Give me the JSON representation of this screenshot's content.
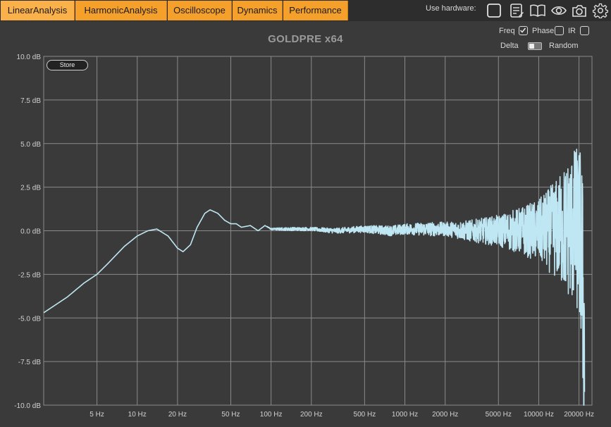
{
  "tabs": [
    {
      "label": "LinearAnalysis",
      "active": true
    },
    {
      "label": "HarmonicAnalysis",
      "active": false
    },
    {
      "label": "Oscilloscope",
      "active": false
    },
    {
      "label": "Dynamics",
      "active": false
    },
    {
      "label": "Performance",
      "active": false
    }
  ],
  "hardware": {
    "label": "Use hardware:",
    "tools": [
      "square-icon",
      "notes-icon",
      "book-icon",
      "eye-icon",
      "camera-icon",
      "gear-icon"
    ]
  },
  "options": {
    "freq_label": "Freq",
    "freq_checked": true,
    "phase_label": "Phase",
    "phase_checked": false,
    "ir_label": "IR",
    "ir_checked": false,
    "delta_label": "Delta",
    "random_label": "Random"
  },
  "store_label": "Store",
  "colors": {
    "tab_bg": "#f6a02c",
    "plot_bg": "#3a3a3a",
    "grid": "#8a8a8a",
    "curve": "#bfe6f3"
  },
  "chart_data": {
    "type": "line",
    "title": "GOLDPRE x64",
    "xlabel": "",
    "ylabel": "",
    "x_scale": "log",
    "xlim": [
      2,
      25000
    ],
    "ylim": [
      -10,
      10
    ],
    "y_ticks": [
      "10.0 dB",
      "7.5 dB",
      "5.0 dB",
      "2.5 dB",
      "0.0 dB",
      "-2.5 dB",
      "-5.0 dB",
      "-7.5 dB",
      "-10.0 dB"
    ],
    "y_tick_values": [
      10,
      7.5,
      5,
      2.5,
      0,
      -2.5,
      -5,
      -7.5,
      -10
    ],
    "x_ticks": [
      "5 Hz",
      "10 Hz",
      "20 Hz",
      "50 Hz",
      "100 Hz",
      "200 Hz",
      "500 Hz",
      "1000 Hz",
      "2000 Hz",
      "5000 Hz",
      "10000 Hz",
      "20000 Hz"
    ],
    "x_tick_values": [
      5,
      10,
      20,
      50,
      100,
      200,
      500,
      1000,
      2000,
      5000,
      10000,
      20000
    ],
    "grid": true,
    "series": [
      {
        "x": [
          2,
          3,
          4,
          5,
          6,
          8,
          10,
          12,
          14,
          17,
          20,
          22,
          25,
          28,
          32,
          35,
          40,
          45,
          50,
          55,
          60,
          70,
          80,
          90,
          100,
          120,
          150,
          200,
          300,
          500,
          800,
          1000,
          1500,
          2000,
          3000,
          5000,
          7000,
          10000,
          14000,
          18000,
          20000,
          21000,
          22000
        ],
        "y": [
          -4.7,
          -3.8,
          -3.0,
          -2.5,
          -1.9,
          -0.9,
          -0.3,
          0.0,
          0.1,
          -0.3,
          -1.0,
          -1.2,
          -0.8,
          0.2,
          1.0,
          1.2,
          1.0,
          0.6,
          0.4,
          0.4,
          0.2,
          0.3,
          0.0,
          0.3,
          0.1,
          0.1,
          0.1,
          0.1,
          0.0,
          0.1,
          0.0,
          0.1,
          0.1,
          0.1,
          0.0,
          0.0,
          0.0,
          0.0,
          0.1,
          0.2,
          0.0,
          -1.5,
          -7.5
        ],
        "noise_amplitude_db": [
          0,
          0,
          0,
          0,
          0,
          0,
          0,
          0,
          0,
          0,
          0,
          0,
          0,
          0,
          0,
          0,
          0,
          0,
          0,
          0,
          0,
          0,
          0,
          0,
          0.05,
          0.08,
          0.1,
          0.1,
          0.15,
          0.2,
          0.3,
          0.3,
          0.4,
          0.4,
          0.6,
          0.9,
          1.3,
          1.8,
          3.0,
          4.5,
          5.0,
          6.0,
          6.5
        ]
      }
    ]
  }
}
